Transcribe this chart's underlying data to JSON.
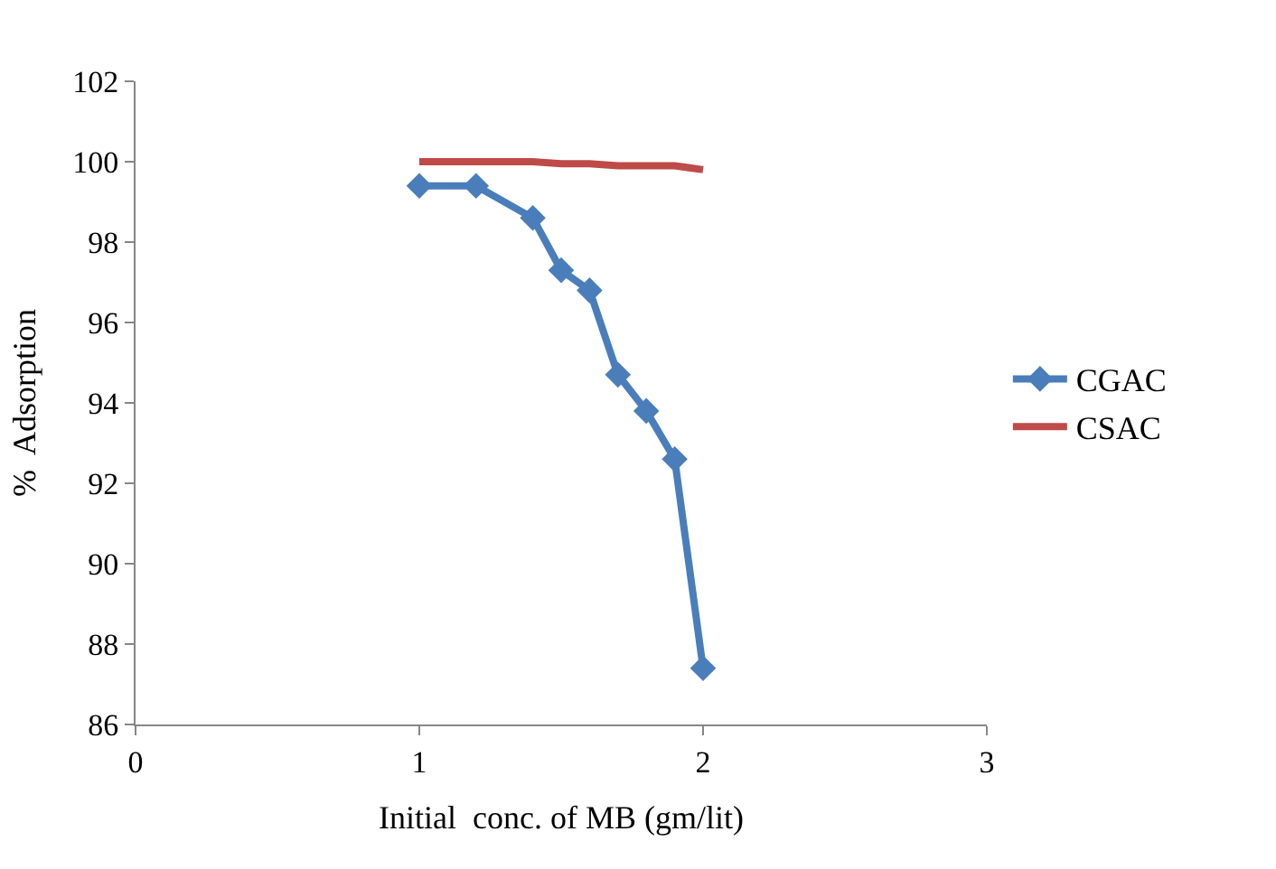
{
  "chart_data": {
    "type": "line",
    "xlabel": "Initial  conc. of MB (gm/lit)",
    "ylabel": "%  Adsorption",
    "x": [
      1,
      1.2,
      1.4,
      1.5,
      1.6,
      1.7,
      1.8,
      1.9,
      2.0
    ],
    "series": [
      {
        "name": "CGAC",
        "color": "#4a7ebb",
        "marker": "diamond",
        "values": [
          99.4,
          99.4,
          98.6,
          97.3,
          96.8,
          94.7,
          93.8,
          92.6,
          87.4
        ]
      },
      {
        "name": "CSAC",
        "color": "#be4b48",
        "marker": "none",
        "values": [
          100,
          100,
          100,
          99.95,
          99.95,
          99.9,
          99.9,
          99.9,
          99.8
        ]
      }
    ],
    "xlim": [
      0,
      3
    ],
    "xticks": [
      0,
      1,
      2,
      3
    ],
    "ylim": [
      86,
      102
    ],
    "yticks": [
      86,
      88,
      90,
      92,
      94,
      96,
      98,
      100,
      102
    ],
    "legend": "right"
  }
}
